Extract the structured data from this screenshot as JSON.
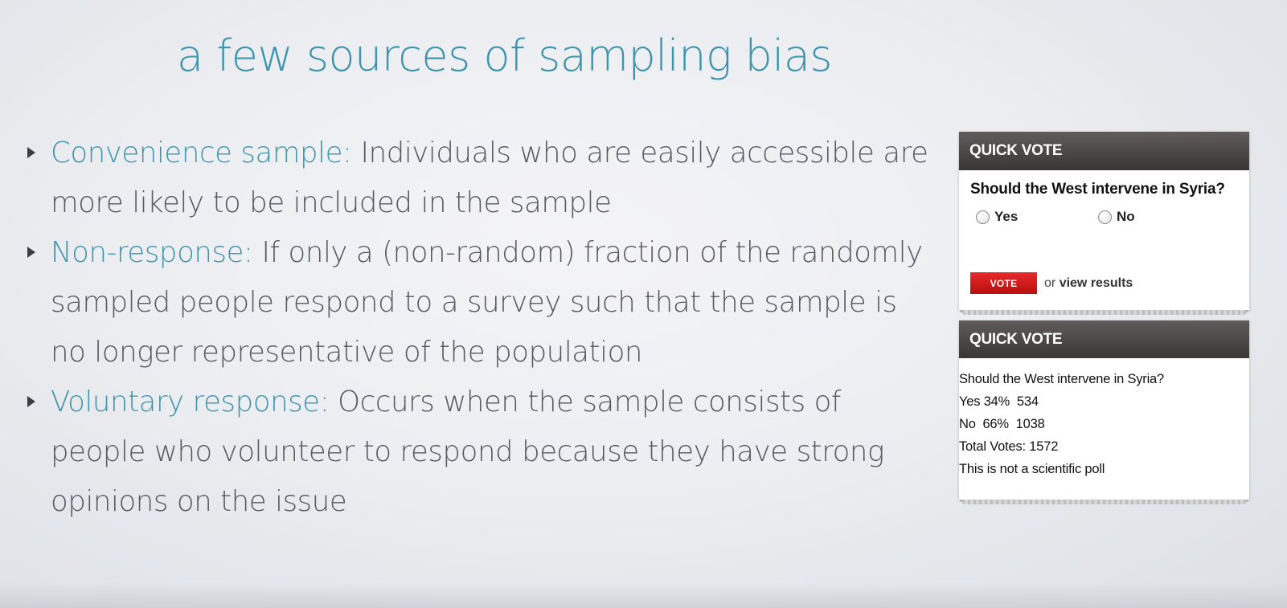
{
  "slide": {
    "title": "a few sources of sampling bias",
    "bullets": [
      {
        "term": "Convenience sample:",
        "text": " Individuals who are easily accessible are more likely to be included in the sample"
      },
      {
        "term": "Non-response:",
        "text": " If only a (non-random) fraction of the randomly sampled people respond to a survey such that the sample is no longer representative of the population"
      },
      {
        "term": "Voluntary response:",
        "text": " Occurs when the sample consists of people who volunteer to respond because they have strong opinions on the issue"
      }
    ]
  },
  "poll_form": {
    "header": "QUICK VOTE",
    "question": "Should the West intervene in Syria?",
    "options": [
      "Yes",
      "No"
    ],
    "vote_label": "VOTE",
    "or_text": "or",
    "view_results": "view results"
  },
  "poll_results": {
    "header": "QUICK VOTE",
    "question": "Should the West intervene in Syria?",
    "yes_line": "Yes 34%  534",
    "no_line": "No  66%  1038",
    "total_line": "Total Votes: 1572",
    "disclaimer": "This is not a scientific poll"
  },
  "colors": {
    "accent": "#3e95ad",
    "body_text": "#555960",
    "vote_red": "#d01b1b",
    "header_dark": "#4a4646"
  }
}
